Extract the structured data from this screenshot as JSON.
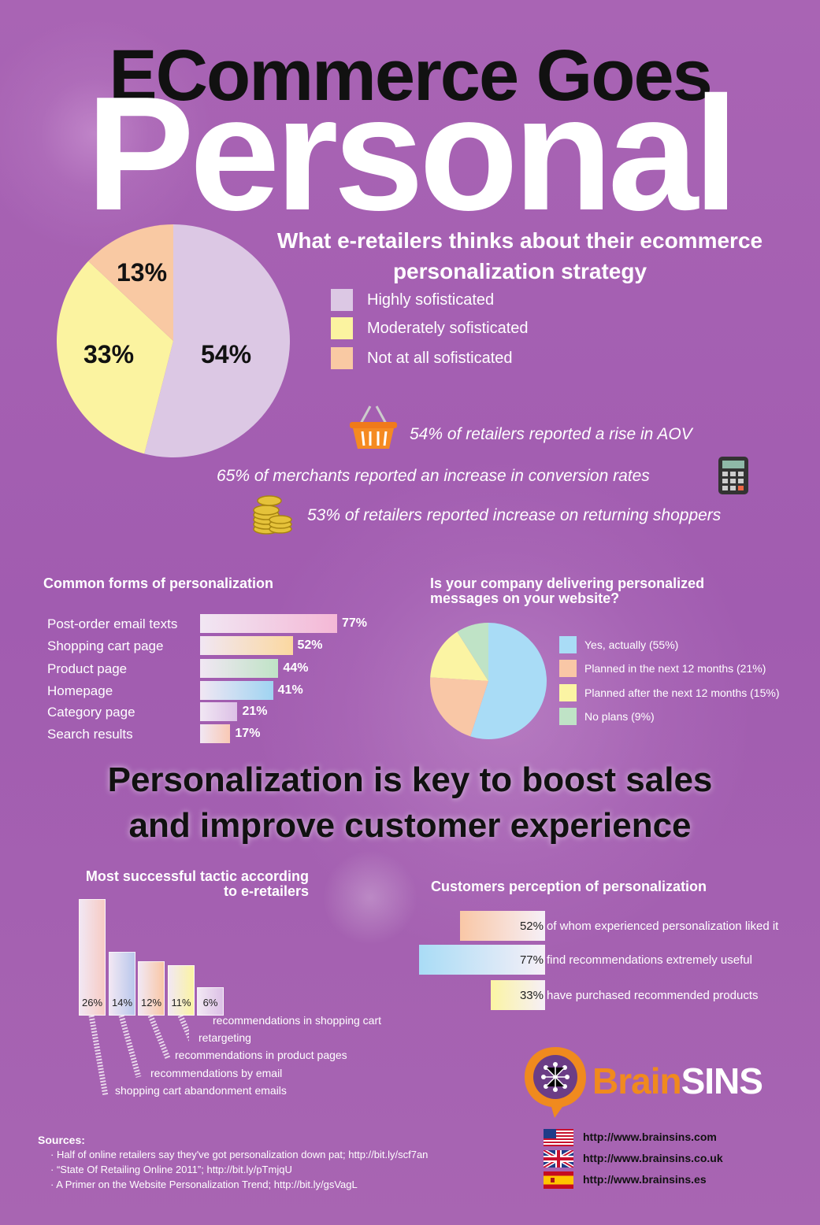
{
  "header": {
    "line1": "ECommerce Goes",
    "line2": "Personal"
  },
  "strategy": {
    "title_line1": "What e-retailers thinks about their ecommerce",
    "title_line2": "personalization strategy",
    "legend": [
      {
        "label": "Highly sofisticated",
        "color": "#dcc8e4"
      },
      {
        "label": "Moderately sofisticated",
        "color": "#fbf3a0"
      },
      {
        "label": "Not at all sofisticated",
        "color": "#f9c9a3"
      }
    ],
    "slice_labels": [
      "54%",
      "33%",
      "13%"
    ]
  },
  "stats": [
    {
      "text": "54% of retailers reported a rise in AOV",
      "icon": "basket-icon"
    },
    {
      "text": "65% of merchants reported an increase in conversion rates",
      "icon": "calculator-icon"
    },
    {
      "text": "53% of retailers reported increase on returning shoppers",
      "icon": "coins-icon"
    }
  ],
  "forms": {
    "title": "Common forms of personalization",
    "items": [
      {
        "label": "Post-order email texts",
        "value_label": "77%"
      },
      {
        "label": "Shopping cart page",
        "value_label": "52%"
      },
      {
        "label": "Product page",
        "value_label": "44%"
      },
      {
        "label": "Homepage",
        "value_label": "41%"
      },
      {
        "label": "Category page",
        "value_label": "21%"
      },
      {
        "label": "Search results",
        "value_label": "17%"
      }
    ]
  },
  "delivering": {
    "title_line1": "Is your company delivering personalized",
    "title_line2": "messages on your website?",
    "legend": [
      {
        "label": "Yes, actually (55%)",
        "color": "#a9dcf6"
      },
      {
        "label": "Planned in the next 12 months (21%)",
        "color": "#f9c7a6"
      },
      {
        "label": "Planned after the next 12 months (15%)",
        "color": "#fbf4a3"
      },
      {
        "label": "No plans (9%)",
        "color": "#bfe3c6"
      }
    ]
  },
  "headline": {
    "line1": "Personalization is key to boost sales",
    "line2": "and improve customer experience"
  },
  "tactics": {
    "title_line1": "Most successful tactic according",
    "title_line2": "to e-retailers",
    "items": [
      {
        "value_label": "26%",
        "label": "shopping cart abandonment emails"
      },
      {
        "value_label": "14%",
        "label": "recommendations by email"
      },
      {
        "value_label": "12%",
        "label": "recommendations in product pages"
      },
      {
        "value_label": "11%",
        "label": "retargeting"
      },
      {
        "value_label": "6%",
        "label": "recommendations in shopping cart"
      }
    ]
  },
  "perception": {
    "title": "Customers perception of personalization",
    "items": [
      {
        "value_label": "52%",
        "text": "of whom experienced personalization liked it"
      },
      {
        "value_label": "77%",
        "text": "find recommendations extremely useful"
      },
      {
        "value_label": "33%",
        "text": "have purchased recommended products"
      }
    ]
  },
  "brand": {
    "name_part1": "Brain",
    "name_part2": "SINS",
    "urls": [
      "http://www.brainsins.com",
      "http://www.brainsins.co.uk",
      "http://www.brainsins.es"
    ]
  },
  "sources": {
    "heading": "Sources",
    "items": [
      "· Half of online retailers say they've got personalization down pat; http://bit.ly/scf7an",
      "· “State Of Retailing Online 2011”; http://bit.ly/pTmjqU",
      "· A Primer on the Website Personalization Trend; http://bit.ly/gsVagL"
    ]
  },
  "chart_data": [
    {
      "type": "pie",
      "title": "What e-retailers thinks about their ecommerce personalization strategy",
      "categories": [
        "Highly sofisticated",
        "Moderately sofisticated",
        "Not at all sofisticated"
      ],
      "values": [
        54,
        33,
        13
      ],
      "colors": [
        "#dcc8e4",
        "#fbf3a0",
        "#f9c9a3"
      ]
    },
    {
      "type": "bar",
      "title": "Common forms of personalization",
      "orientation": "horizontal",
      "categories": [
        "Post-order email texts",
        "Shopping cart page",
        "Product page",
        "Homepage",
        "Category page",
        "Search results"
      ],
      "values": [
        77,
        52,
        44,
        41,
        21,
        17
      ],
      "colors": [
        "#f4b8d6",
        "#fbd8a0",
        "#bfe3c6",
        "#9fd4f2",
        "#dcc0e6",
        "#f9c9b5"
      ],
      "xlim": [
        0,
        100
      ]
    },
    {
      "type": "pie",
      "title": "Is your company delivering personalized messages on your website?",
      "categories": [
        "Yes, actually",
        "Planned in the next 12 months",
        "Planned after the next 12 months",
        "No plans"
      ],
      "values": [
        55,
        21,
        15,
        9
      ],
      "colors": [
        "#a9dcf6",
        "#f9c7a6",
        "#fbf4a3",
        "#bfe3c6"
      ]
    },
    {
      "type": "bar",
      "title": "Most successful tactic according to e-retailers",
      "categories": [
        "shopping cart abandonment emails",
        "recommendations by email",
        "recommendations in product pages",
        "retargeting",
        "recommendations in shopping cart"
      ],
      "values": [
        26,
        14,
        12,
        11,
        6
      ],
      "colors": [
        "#f7cbc4",
        "#b9c8ec",
        "#f9c7a6",
        "#fbf4a3",
        "#dcc0e6"
      ]
    },
    {
      "type": "bar",
      "title": "Customers perception of personalization",
      "orientation": "horizontal",
      "categories": [
        "of whom experienced personalization liked it",
        "find recommendations extremely useful",
        "have purchased recommended products"
      ],
      "values": [
        52,
        77,
        33
      ],
      "colors": [
        "#f9c7a6",
        "#a9dcf6",
        "#fbf4a3"
      ]
    }
  ]
}
